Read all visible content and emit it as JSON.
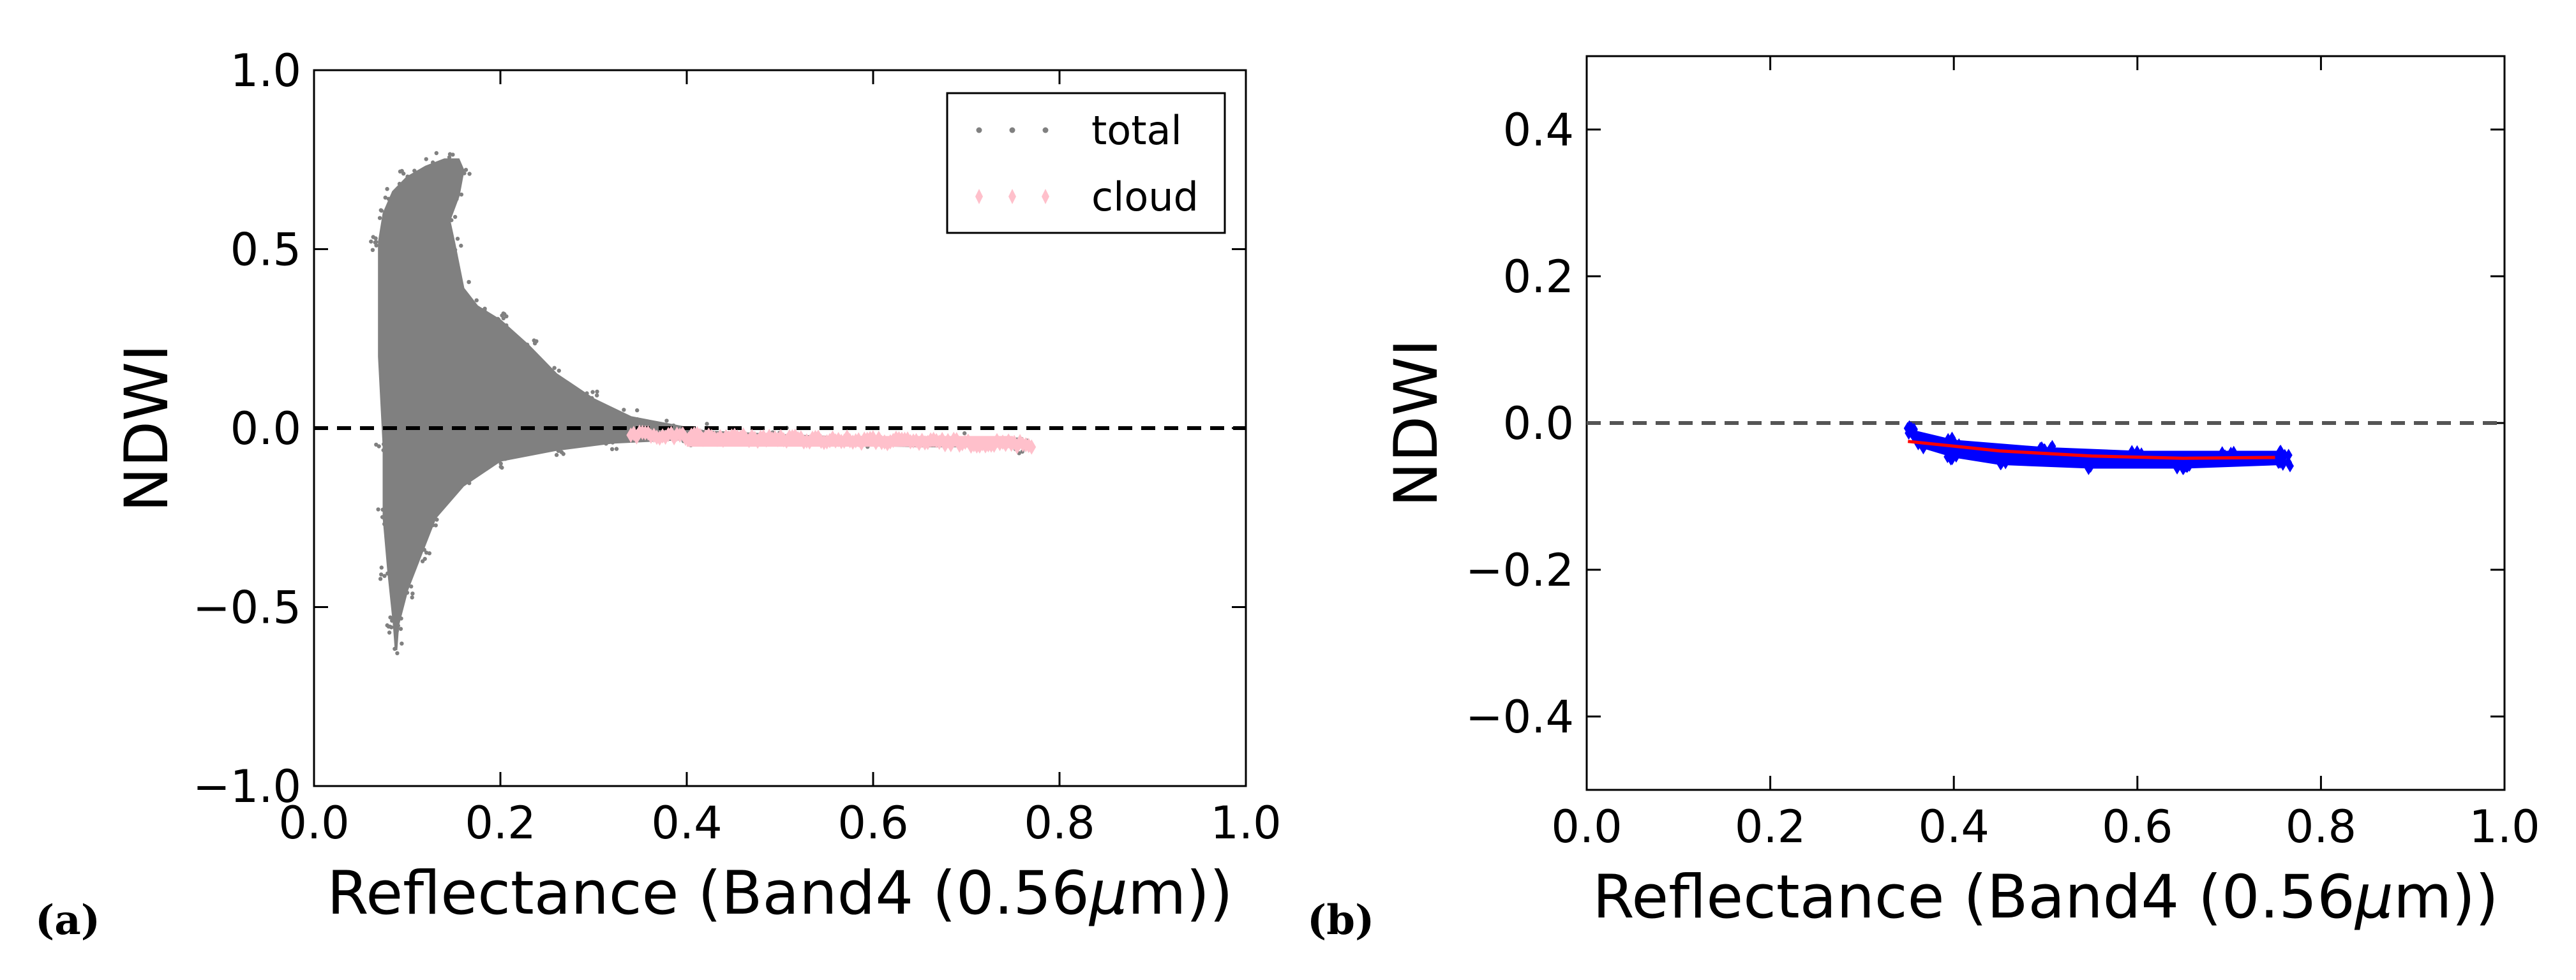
{
  "panels": {
    "a": {
      "label": "(a)"
    },
    "b": {
      "label": "(b)"
    }
  },
  "chart_data": [
    {
      "type": "scatter",
      "title": "",
      "xlabel": "Reflectance (Band4 (0.56",
      "xlabel_mu": "μ",
      "xlabel_tail": "m))",
      "ylabel": "NDWI",
      "xlim": [
        0.0,
        1.0
      ],
      "ylim": [
        -1.0,
        1.0
      ],
      "xticks": [
        0.0,
        0.2,
        0.4,
        0.6,
        0.8,
        1.0
      ],
      "xtick_labels": [
        "0.0",
        "0.2",
        "0.4",
        "0.6",
        "0.8",
        "1.0"
      ],
      "yticks": [
        -1.0,
        -0.5,
        0.0,
        0.5,
        1.0
      ],
      "ytick_labels": [
        "−1.0",
        "−0.5",
        "0.0",
        "0.5",
        "1.0"
      ],
      "reference_line": {
        "y": 0.0,
        "style": "dashed",
        "color": "#000000"
      },
      "legend": {
        "placement": "top-right",
        "entries": [
          "total",
          "cloud"
        ]
      },
      "series": [
        {
          "name": "total",
          "color": "#808080",
          "marker": "star",
          "upper_envelope": [
            [
              0.07,
              0.52
            ],
            [
              0.075,
              0.6
            ],
            [
              0.085,
              0.66
            ],
            [
              0.1,
              0.7
            ],
            [
              0.12,
              0.73
            ],
            [
              0.14,
              0.75
            ],
            [
              0.155,
              0.75
            ],
            [
              0.16,
              0.72
            ],
            [
              0.155,
              0.65
            ],
            [
              0.145,
              0.58
            ],
            [
              0.15,
              0.52
            ],
            [
              0.16,
              0.39
            ],
            [
              0.175,
              0.34
            ],
            [
              0.2,
              0.3
            ],
            [
              0.23,
              0.23
            ],
            [
              0.26,
              0.15
            ],
            [
              0.3,
              0.08
            ],
            [
              0.34,
              0.03
            ],
            [
              0.38,
              0.01
            ],
            [
              0.42,
              -0.01
            ],
            [
              0.5,
              -0.02
            ],
            [
              0.6,
              -0.03
            ],
            [
              0.7,
              -0.03
            ],
            [
              0.76,
              -0.03
            ]
          ],
          "lower_envelope": [
            [
              0.76,
              -0.05
            ],
            [
              0.65,
              -0.05
            ],
            [
              0.5,
              -0.04
            ],
            [
              0.4,
              -0.03
            ],
            [
              0.32,
              -0.04
            ],
            [
              0.26,
              -0.06
            ],
            [
              0.2,
              -0.09
            ],
            [
              0.16,
              -0.16
            ],
            [
              0.13,
              -0.25
            ],
            [
              0.115,
              -0.35
            ],
            [
              0.1,
              -0.45
            ],
            [
              0.09,
              -0.55
            ],
            [
              0.088,
              -0.62
            ],
            [
              0.086,
              -0.55
            ],
            [
              0.08,
              -0.4
            ],
            [
              0.075,
              -0.25
            ],
            [
              0.075,
              -0.05
            ],
            [
              0.07,
              0.2
            ]
          ]
        },
        {
          "name": "cloud",
          "color": "#ffc0cb",
          "marker": "diamond",
          "x_range": [
            0.34,
            0.77
          ],
          "y_start": -0.02,
          "y_end": -0.045
        }
      ]
    },
    {
      "type": "scatter",
      "title": "",
      "xlabel": "Reflectance (Band4 (0.56",
      "xlabel_mu": "μ",
      "xlabel_tail": "m))",
      "ylabel": "NDWI",
      "xlim": [
        0.0,
        1.0
      ],
      "ylim": [
        -0.5,
        0.5
      ],
      "xticks": [
        0.0,
        0.2,
        0.4,
        0.6,
        0.8,
        1.0
      ],
      "xtick_labels": [
        "0.0",
        "0.2",
        "0.4",
        "0.6",
        "0.8",
        "1.0"
      ],
      "yticks": [
        -0.4,
        -0.2,
        0.0,
        0.2,
        0.4
      ],
      "ytick_labels": [
        "−0.4",
        "−0.2",
        "0.0",
        "0.2",
        "0.4"
      ],
      "reference_line": {
        "y": 0.0,
        "style": "dashed",
        "color": "#555555"
      },
      "series": [
        {
          "name": "cloud points",
          "color": "#0000ff",
          "marker": "diamond",
          "band_upper": [
            [
              0.35,
              -0.01
            ],
            [
              0.4,
              -0.025
            ],
            [
              0.5,
              -0.035
            ],
            [
              0.6,
              -0.04
            ],
            [
              0.7,
              -0.04
            ],
            [
              0.76,
              -0.04
            ]
          ],
          "band_lower": [
            [
              0.76,
              -0.055
            ],
            [
              0.65,
              -0.06
            ],
            [
              0.55,
              -0.06
            ],
            [
              0.45,
              -0.055
            ],
            [
              0.4,
              -0.045
            ],
            [
              0.36,
              -0.03
            ]
          ]
        },
        {
          "name": "fit",
          "type": "line",
          "color": "#ff0000",
          "x": [
            0.35,
            0.45,
            0.55,
            0.65,
            0.75
          ],
          "y": [
            -0.025,
            -0.038,
            -0.045,
            -0.048,
            -0.047
          ]
        }
      ]
    }
  ]
}
